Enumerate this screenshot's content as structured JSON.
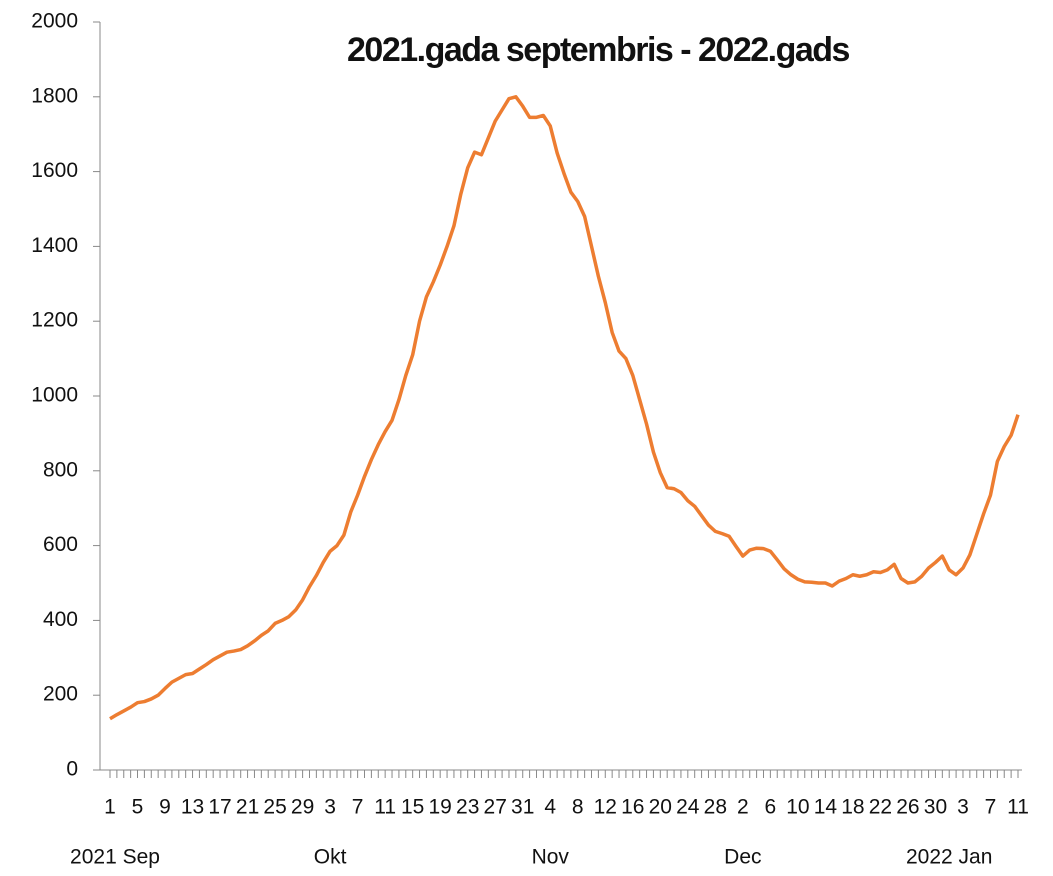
{
  "chart_data": {
    "type": "line",
    "title": "2021.gada septembris - 2022.gads",
    "categories": [
      "1",
      null,
      null,
      null,
      "5",
      null,
      null,
      null,
      "9",
      null,
      null,
      null,
      "13",
      null,
      null,
      null,
      "17",
      null,
      null,
      null,
      "21",
      null,
      null,
      null,
      "25",
      null,
      null,
      null,
      "29",
      null,
      null,
      null,
      "3",
      null,
      null,
      null,
      "7",
      null,
      null,
      null,
      "11",
      null,
      null,
      null,
      "15",
      null,
      null,
      null,
      "19",
      null,
      null,
      null,
      "23",
      null,
      null,
      null,
      "27",
      null,
      null,
      null,
      "31",
      null,
      null,
      null,
      "4",
      null,
      null,
      null,
      "8",
      null,
      null,
      null,
      "12",
      null,
      null,
      null,
      "16",
      null,
      null,
      null,
      "20",
      null,
      null,
      null,
      "24",
      null,
      null,
      null,
      "28",
      null,
      null,
      null,
      "2",
      null,
      null,
      null,
      "6",
      null,
      null,
      null,
      "10",
      null,
      null,
      null,
      "14",
      null,
      null,
      null,
      "18",
      null,
      null,
      null,
      "22",
      null,
      null,
      null,
      "26",
      null,
      null,
      null,
      "30",
      null,
      null,
      null,
      "3",
      null,
      null,
      null,
      "7",
      null,
      null,
      null,
      "11"
    ],
    "month_labels": [
      "2021 Sep",
      null,
      null,
      null,
      null,
      null,
      null,
      null,
      null,
      null,
      null,
      null,
      null,
      null,
      null,
      null,
      null,
      null,
      null,
      null,
      null,
      null,
      null,
      null,
      null,
      null,
      null,
      null,
      null,
      null,
      null,
      null,
      "Okt",
      null,
      null,
      null,
      null,
      null,
      null,
      null,
      null,
      null,
      null,
      null,
      null,
      null,
      null,
      null,
      null,
      null,
      null,
      null,
      null,
      null,
      null,
      null,
      null,
      null,
      null,
      null,
      null,
      null,
      null,
      null,
      "Nov",
      null,
      null,
      null,
      null,
      null,
      null,
      null,
      null,
      null,
      null,
      null,
      null,
      null,
      null,
      null,
      null,
      null,
      null,
      null,
      null,
      null,
      null,
      null,
      null,
      null,
      null,
      null,
      "Dec",
      null,
      null,
      null,
      null,
      null,
      null,
      null,
      null,
      null,
      null,
      null,
      null,
      null,
      null,
      null,
      null,
      null,
      null,
      null,
      null,
      null,
      null,
      null,
      null,
      null,
      null,
      null,
      null,
      null,
      "2022 Jan",
      null,
      null,
      null,
      null,
      null,
      null,
      null,
      null,
      null,
      null
    ],
    "values": [
      137,
      148,
      158,
      168,
      180,
      183,
      190,
      200,
      218,
      235,
      245,
      255,
      258,
      270,
      282,
      295,
      305,
      315,
      318,
      322,
      332,
      345,
      360,
      372,
      392,
      400,
      410,
      428,
      455,
      490,
      520,
      555,
      585,
      600,
      628,
      690,
      735,
      785,
      830,
      870,
      905,
      935,
      990,
      1055,
      1110,
      1200,
      1265,
      1305,
      1350,
      1400,
      1455,
      1540,
      1610,
      1652,
      1645,
      1690,
      1735,
      1765,
      1795,
      1800,
      1775,
      1745,
      1745,
      1750,
      1722,
      1650,
      1595,
      1545,
      1520,
      1480,
      1400,
      1320,
      1250,
      1170,
      1120,
      1100,
      1055,
      990,
      925,
      850,
      795,
      755,
      752,
      742,
      720,
      705,
      680,
      655,
      638,
      632,
      625,
      598,
      572,
      588,
      593,
      592,
      585,
      562,
      538,
      522,
      510,
      503,
      502,
      500,
      500,
      492,
      505,
      512,
      522,
      518,
      522,
      530,
      528,
      535,
      550,
      512,
      500,
      503,
      518,
      540,
      555,
      572,
      535,
      522,
      540,
      575,
      630,
      685,
      735,
      825,
      865,
      895,
      950
    ],
    "color": "#ed7d31",
    "ylim": [
      0,
      2000
    ],
    "yticks": [
      0,
      200,
      400,
      600,
      800,
      1000,
      1200,
      1400,
      1600,
      1800,
      2000
    ],
    "grid": false
  }
}
